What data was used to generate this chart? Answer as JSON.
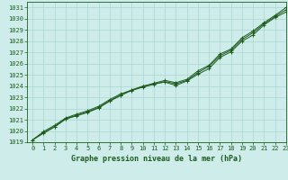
{
  "xlabel": "Graphe pression niveau de la mer (hPa)",
  "xlim": [
    -0.5,
    23
  ],
  "ylim": [
    1019,
    1031.5
  ],
  "xticks": [
    0,
    1,
    2,
    3,
    4,
    5,
    6,
    7,
    8,
    9,
    10,
    11,
    12,
    13,
    14,
    15,
    16,
    17,
    18,
    19,
    20,
    21,
    22,
    23
  ],
  "yticks": [
    1019,
    1020,
    1021,
    1022,
    1023,
    1024,
    1025,
    1026,
    1027,
    1028,
    1029,
    1030,
    1031
  ],
  "bg_color": "#cdecea",
  "grid_color": "#aad6d2",
  "line_color": "#1e5c1e",
  "series1": [
    1019.2,
    1019.8,
    1020.35,
    1021.05,
    1021.35,
    1021.65,
    1022.05,
    1022.65,
    1023.15,
    1023.65,
    1024.0,
    1024.2,
    1024.35,
    1024.05,
    1024.45,
    1025.05,
    1025.55,
    1026.55,
    1027.05,
    1028.0,
    1028.55,
    1029.45,
    1030.1,
    1030.6
  ],
  "series2": [
    1019.2,
    1019.85,
    1020.4,
    1021.1,
    1021.4,
    1021.7,
    1022.1,
    1022.7,
    1023.2,
    1023.6,
    1023.9,
    1024.15,
    1024.4,
    1024.2,
    1024.5,
    1025.2,
    1025.75,
    1026.7,
    1027.2,
    1028.15,
    1028.75,
    1029.55,
    1030.2,
    1030.8
  ],
  "series3": [
    1019.2,
    1019.95,
    1020.5,
    1021.15,
    1021.5,
    1021.8,
    1022.2,
    1022.8,
    1023.3,
    1023.65,
    1023.95,
    1024.25,
    1024.5,
    1024.3,
    1024.6,
    1025.35,
    1025.85,
    1026.85,
    1027.3,
    1028.3,
    1028.9,
    1029.65,
    1030.3,
    1031.0
  ],
  "tick_fontsize": 5,
  "label_fontsize": 6
}
